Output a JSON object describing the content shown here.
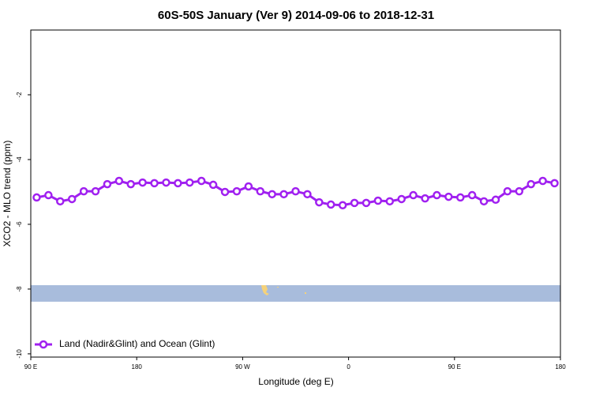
{
  "chart_data": {
    "type": "line",
    "title": "60S-50S January (Ver 9)   2014-09-06 to 2018-12-31",
    "xlabel": "Longitude (deg E)",
    "ylabel": "XCO2 - MLO trend (ppm)",
    "x": [
      95,
      105,
      115,
      125,
      135,
      145,
      155,
      165,
      175,
      185,
      195,
      205,
      215,
      225,
      235,
      245,
      255,
      265,
      275,
      285,
      295,
      305,
      315,
      325,
      335,
      345,
      355,
      365,
      375,
      385,
      395,
      405,
      415,
      425,
      435,
      445,
      455,
      465,
      475,
      485,
      495,
      505,
      515,
      525,
      535
    ],
    "series": [
      {
        "name": "Land (Nadir&Glint) and Ocean (Glint)",
        "color": "#a020f0",
        "values": [
          -5.17,
          -5.1,
          -5.29,
          -5.22,
          -4.98,
          -4.98,
          -4.76,
          -4.66,
          -4.76,
          -4.71,
          -4.73,
          -4.71,
          -4.73,
          -4.71,
          -4.66,
          -4.78,
          -5.0,
          -4.98,
          -4.83,
          -4.98,
          -5.07,
          -5.07,
          -4.98,
          -5.07,
          -5.32,
          -5.39,
          -5.41,
          -5.34,
          -5.34,
          -5.27,
          -5.29,
          -5.22,
          -5.1,
          -5.2,
          -5.1,
          -5.15,
          -5.17,
          -5.1,
          -5.29,
          -5.24,
          -4.98,
          -4.98,
          -4.76,
          -4.66,
          -4.73
        ]
      }
    ],
    "xlim": [
      90,
      540
    ],
    "xticks": [
      {
        "value": 90,
        "label": "90 E"
      },
      180,
      {
        "value": 270,
        "label": "90 W"
      },
      {
        "value": 360,
        "label": "0"
      },
      {
        "value": 450,
        "label": "90 E"
      },
      {
        "value": 540,
        "label": "180"
      }
    ],
    "ylim": [
      -10.1,
      0
    ],
    "yticks": [
      -10,
      -8,
      -6,
      -4,
      -2
    ],
    "legend": "lower left"
  }
}
